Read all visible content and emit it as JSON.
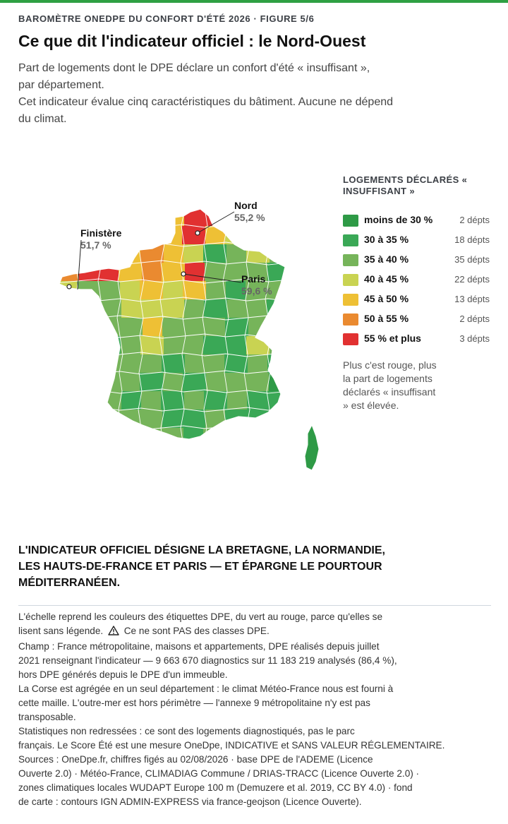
{
  "kicker": "BAROMÈTRE ONEDPE DU CONFORT D'ÉTÉ 2026 · FIGURE 5/6",
  "title": "Ce que dit l'indicateur officiel : le Nord-Ouest",
  "subtitle_lines": [
    "Part de logements dont le DPE déclare un confort d'été « insuffisant »,",
    "par département.",
    "Cet indicateur évalue cinq caractéristiques du bâtiment. Aucune ne dépend",
    "du climat."
  ],
  "map": {
    "callouts": {
      "nord": {
        "name": "Nord",
        "value": "55,2 %"
      },
      "finistere": {
        "name": "Finistère",
        "value": "51,7 %"
      },
      "paris": {
        "name": "Paris",
        "value": "59,6 %"
      }
    }
  },
  "legend": {
    "title_lines": [
      "LOGEMENTS DÉCLARÉS «",
      "INSUFFISANT »"
    ],
    "items": [
      {
        "label": "moins de 30 %",
        "count": "2 dépts",
        "color": "#2e9a46"
      },
      {
        "label": "30 à 35 %",
        "count": "18 dépts",
        "color": "#3aa856"
      },
      {
        "label": "35 à 40 %",
        "count": "35 dépts",
        "color": "#76b45a"
      },
      {
        "label": "40 à 45 %",
        "count": "22 dépts",
        "color": "#c9d352"
      },
      {
        "label": "45 à 50 %",
        "count": "13 dépts",
        "color": "#eec035"
      },
      {
        "label": "50 à 55 %",
        "count": "2 dépts",
        "color": "#ea8a30"
      },
      {
        "label": "55 % et plus",
        "count": "3 dépts",
        "color": "#e13131"
      }
    ],
    "note_lines": [
      "Plus c'est rouge, plus",
      "la part de logements",
      "déclarés « insuffisant",
      "» est élevée."
    ]
  },
  "headline_lines": [
    "L'INDICATEUR OFFICIEL DÉSIGNE LA BRETAGNE, LA NORMANDIE,",
    "LES HAUTS-DE-FRANCE ET PARIS — ET ÉPARGNE LE POURTOUR",
    "MÉDITERRANÉEN."
  ],
  "notes": {
    "line_1": "L'échelle reprend les couleurs des étiquettes DPE, du vert au rouge, parce qu'elles se",
    "line_2a": "lisent sans légende.",
    "line_2b": "Ce ne sont PAS des classes DPE.",
    "lines_rest": [
      "Champ : France métropolitaine, maisons et appartements, DPE réalisés depuis juillet",
      "2021 renseignant l'indicateur — 9 663 670 diagnostics sur 11 183 219 analysés (86,4 %),",
      "hors DPE générés depuis le DPE d'un immeuble.",
      "La Corse est agrégée en un seul département : le climat Météo-France nous est fourni à",
      "cette maille. L'outre-mer est hors périmètre — l'annexe 9 métropolitaine n'y est pas",
      "transposable.",
      "Statistiques non redressées : ce sont des logements diagnostiqués, pas le parc",
      "français. Le Score Été est une mesure OneDpe, INDICATIVE et SANS VALEUR RÉGLEMENTAIRE.",
      "Sources : OneDpe.fr, chiffres figés au 02/08/2026 · base DPE de l'ADEME (Licence",
      "Ouverte 2.0) · Météo-France, CLIMADIAG Commune / DRIAS-TRACC (Licence Ouverte 2.0) ·",
      "zones climatiques locales WUDAPT Europe 100 m (Demuzere et al. 2019, CC BY 4.0) · fond",
      "de carte : contours IGN ADMIN-EXPRESS via france-geojson (Licence Ouverte)."
    ]
  }
}
